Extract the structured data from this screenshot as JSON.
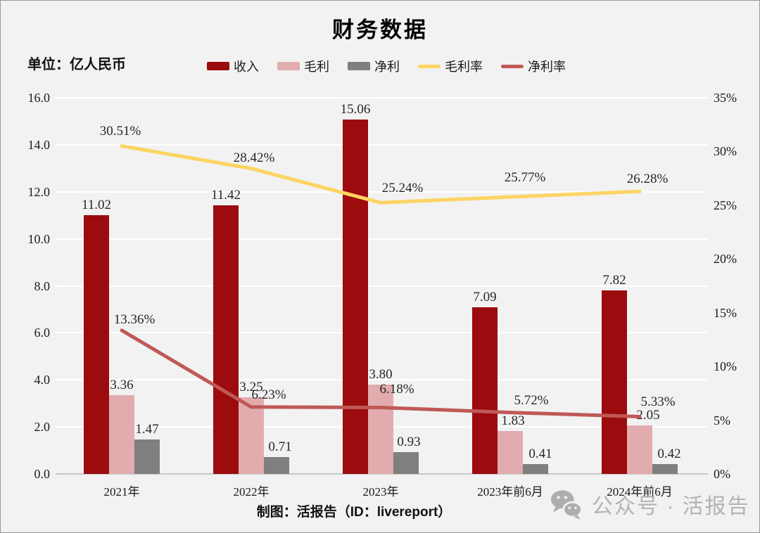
{
  "title": "财务数据",
  "unit_label": "单位：亿人民币",
  "footer_credit": "制图：活报告（ID：livereport）",
  "watermark": {
    "icon": "wechat-icon",
    "text": "公众号 · 活报告"
  },
  "colors": {
    "revenue": "#9c0b0e",
    "gross_profit": "#e2acae",
    "net_profit": "#7f7f7f",
    "gross_margin": "#fcd462",
    "net_margin": "#bf5956",
    "background": "#f2f2f2",
    "gridline": "#ffffff",
    "baseline": "#c9c9c9",
    "label_text": "#262626",
    "watermark_gray": "#b3b3b3"
  },
  "chart_data": {
    "type": "combo-bar-line",
    "title": "财务数据",
    "unit": "亿人民币",
    "categories": [
      "2021年",
      "2022年",
      "2023年",
      "2023年前6月",
      "2024年前6月"
    ],
    "bar_series": [
      {
        "name": "收入",
        "color_key": "revenue",
        "values": [
          11.02,
          11.42,
          15.06,
          7.09,
          7.82
        ],
        "labels": [
          "11.02",
          "11.42",
          "15.06",
          "7.09",
          "7.82"
        ]
      },
      {
        "name": "毛利",
        "color_key": "gross_profit",
        "values": [
          3.36,
          3.25,
          3.8,
          1.83,
          2.05
        ],
        "labels": [
          "3.36",
          "3.25",
          "3.80",
          "1.83",
          "2.05"
        ]
      },
      {
        "name": "净利",
        "color_key": "net_profit",
        "values": [
          1.47,
          0.71,
          0.93,
          0.41,
          0.42
        ],
        "labels": [
          "1.47",
          "0.71",
          "0.93",
          "0.41",
          "0.42"
        ]
      }
    ],
    "line_series": [
      {
        "name": "毛利率",
        "color_key": "gross_margin",
        "values": [
          30.51,
          28.42,
          25.24,
          25.77,
          26.28
        ],
        "labels": [
          "30.51%",
          "28.42%",
          "25.24%",
          "25.77%",
          "26.28%"
        ]
      },
      {
        "name": "净利率",
        "color_key": "net_margin",
        "values": [
          13.36,
          6.23,
          6.18,
          5.72,
          5.33
        ],
        "labels": [
          "13.36%",
          "6.23%",
          "6.18%",
          "5.72%",
          "5.33%"
        ]
      }
    ],
    "left_axis": {
      "min": 0,
      "max": 16,
      "step": 2,
      "tick_labels": [
        "0.0",
        "2.0",
        "4.0",
        "6.0",
        "8.0",
        "10.0",
        "12.0",
        "14.0",
        "16.0"
      ]
    },
    "right_axis": {
      "min": 0,
      "max": 35,
      "step": 5,
      "tick_labels": [
        "0%",
        "5%",
        "10%",
        "15%",
        "20%",
        "25%",
        "30%",
        "35%"
      ]
    },
    "legend": [
      {
        "label": "收入",
        "type": "bar",
        "color_key": "revenue"
      },
      {
        "label": "毛利",
        "type": "bar",
        "color_key": "gross_profit"
      },
      {
        "label": "净利",
        "type": "bar",
        "color_key": "net_profit"
      },
      {
        "label": "毛利率",
        "type": "line",
        "color_key": "gross_margin"
      },
      {
        "label": "净利率",
        "type": "line",
        "color_key": "net_margin"
      }
    ],
    "grid": true,
    "legend_position": "top"
  }
}
